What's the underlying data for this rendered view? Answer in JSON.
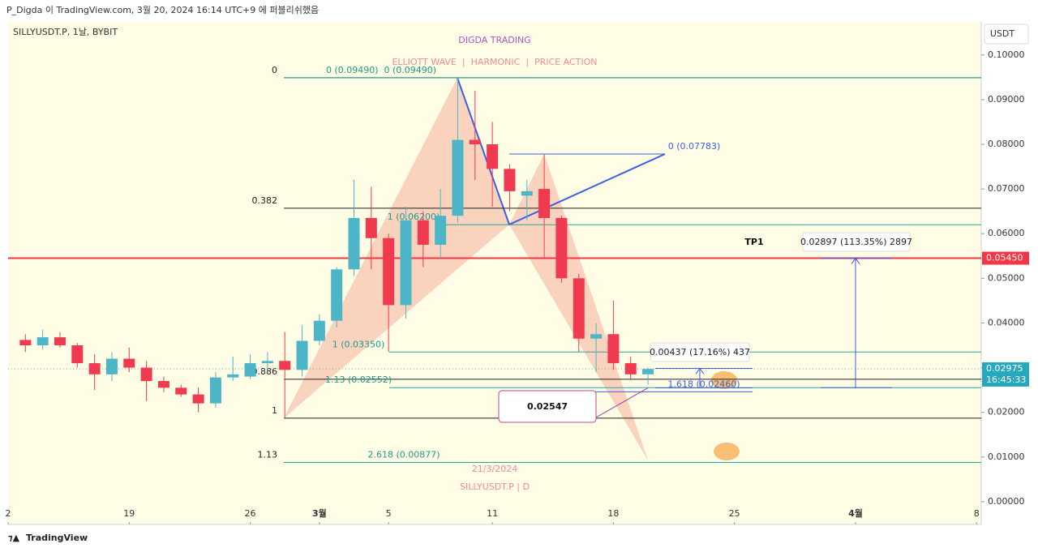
{
  "header": "P_Digda 이 TradingView.com, 3월 20, 2024 16:14 UTC+9 에 퍼블리쉬했음",
  "footer": "TradingView",
  "chart_data": {
    "type": "candlestick",
    "symbol": "SILLYUSDT.P, 1날, BYBIT",
    "currency": "USDT",
    "title": "DIGDA TRADING",
    "subtitle": "ELLIOTT WAVE  |  HARMONIC  |  PRICE ACTION",
    "date_note": "21/3/2024",
    "pair_note": "SILLYUSDT.P | D",
    "xlim": [
      -1,
      55.27
    ],
    "xticks": [
      {
        "value": -1,
        "label": "2"
      },
      {
        "value": 6,
        "label": "19"
      },
      {
        "value": 13,
        "label": "26"
      },
      {
        "value": 17,
        "label": "3월"
      },
      {
        "value": 21,
        "label": "5"
      },
      {
        "value": 27,
        "label": "11"
      },
      {
        "value": 34,
        "label": "18"
      },
      {
        "value": 41,
        "label": "25"
      },
      {
        "value": 48,
        "label": "4월"
      },
      {
        "value": 55,
        "label": "8"
      }
    ],
    "ylim": [
      -0.0051,
      0.1074
    ],
    "yticks": [
      {
        "value": 0,
        "label": "0.00000"
      },
      {
        "value": 0.01,
        "label": "0.01000"
      },
      {
        "value": 0.02,
        "label": "0.02000"
      },
      {
        "value": 0.03,
        "label": "0.03000"
      },
      {
        "value": 0.04,
        "label": "0.04000"
      },
      {
        "value": 0.05,
        "label": "0.05000"
      },
      {
        "value": 0.06,
        "label": "0.06000"
      },
      {
        "value": 0.07,
        "label": "0.07000"
      },
      {
        "value": 0.08,
        "label": "0.08000"
      },
      {
        "value": 0.09,
        "label": "0.09000"
      },
      {
        "value": 0.1,
        "label": "0.10000"
      }
    ],
    "up_color": "#4db6c6",
    "down_color": "#ef3a4f",
    "open": [
      0.0362,
      0.035,
      0.0368,
      0.035,
      0.031,
      0.0285,
      0.032,
      0.03,
      0.027,
      0.0255,
      0.024,
      0.022,
      0.0278,
      0.028,
      0.031,
      0.0315,
      0.0295,
      0.036,
      0.0405,
      0.052,
      0.0635,
      0.059,
      0.044,
      0.063,
      0.0575,
      0.064,
      0.081,
      0.08,
      0.0745,
      0.0685,
      0.07,
      0.0635,
      0.05,
      0.0365,
      0.0375,
      0.031,
      0.0285
    ],
    "high": [
      0.0375,
      0.0385,
      0.038,
      0.0355,
      0.033,
      0.0335,
      0.0345,
      0.0315,
      0.028,
      0.0262,
      0.0255,
      0.029,
      0.0325,
      0.033,
      0.0335,
      0.038,
      0.0395,
      0.042,
      0.0525,
      0.072,
      0.0705,
      0.06,
      0.066,
      0.065,
      0.07,
      0.0949,
      0.092,
      0.085,
      0.0755,
      0.072,
      0.0778,
      0.064,
      0.051,
      0.04,
      0.045,
      0.0325,
      0.03
    ],
    "low": [
      0.0335,
      0.034,
      0.0345,
      0.03,
      0.025,
      0.027,
      0.029,
      0.0225,
      0.0245,
      0.0235,
      0.02,
      0.021,
      0.027,
      0.0275,
      0.0295,
      0.0187,
      0.028,
      0.035,
      0.039,
      0.0505,
      0.052,
      0.0335,
      0.041,
      0.0525,
      0.0545,
      0.0625,
      0.072,
      0.066,
      0.065,
      0.063,
      0.0545,
      0.049,
      0.0335,
      0.029,
      0.0295,
      0.0272,
      0.0262
    ],
    "close": [
      0.035,
      0.0368,
      0.035,
      0.031,
      0.0285,
      0.032,
      0.03,
      0.027,
      0.0255,
      0.024,
      0.022,
      0.0278,
      0.0285,
      0.031,
      0.0315,
      0.0295,
      0.036,
      0.0405,
      0.052,
      0.0635,
      0.059,
      0.044,
      0.063,
      0.0575,
      0.064,
      0.081,
      0.08,
      0.0745,
      0.0695,
      0.0695,
      0.0635,
      0.05,
      0.0365,
      0.0375,
      0.031,
      0.0285,
      0.0297
    ],
    "fib_left": [
      {
        "label": "0",
        "value": 0.0949
      },
      {
        "label": "0.382",
        "value": 0.0657
      },
      {
        "label": "0.886",
        "value": 0.0274
      },
      {
        "label": "1",
        "value": 0.0187
      },
      {
        "label": "1.13",
        "value": 0.00877
      }
    ],
    "fib_right": [
      {
        "label": "0 (0.09490)  0 (0.09490)",
        "value": 0.0949
      },
      {
        "label": "1 (0.06200)",
        "value": 0.062
      },
      {
        "label": "1 (0.03350)",
        "value": 0.0335
      },
      {
        "label": "1.13 (0.02552)",
        "value": 0.02552
      },
      {
        "label": "2.618 (0.00877)",
        "value": 0.00877
      }
    ],
    "fib_blue": [
      {
        "label": "0 (0.07783)",
        "value": 0.07783
      },
      {
        "label": "1.618 (0.02460)",
        "value": 0.0246
      }
    ],
    "price_line": {
      "value": 0.0545,
      "label": "0.05450",
      "color": "#f23645"
    },
    "last_price": {
      "value": 0.02975,
      "label": "0.02975",
      "countdown": "16:45:33"
    },
    "target": "TP1",
    "measures": [
      {
        "text": "0.02897 (113.35%) 2897",
        "from": 0.02552,
        "to": 0.0545
      },
      {
        "text": "0.00437 (17.16%) 437",
        "from": 0.02547,
        "to": 0.02984
      }
    ],
    "callout": {
      "text": "0.02547",
      "value": 0.02547
    }
  }
}
